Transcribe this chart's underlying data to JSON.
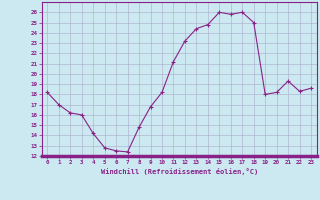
{
  "x": [
    0,
    1,
    2,
    3,
    4,
    5,
    6,
    7,
    8,
    9,
    10,
    11,
    12,
    13,
    14,
    15,
    16,
    17,
    18,
    19,
    20,
    21,
    22,
    23
  ],
  "y": [
    18.2,
    17.0,
    16.2,
    16.0,
    14.2,
    12.8,
    12.5,
    12.4,
    14.8,
    16.8,
    18.2,
    21.2,
    23.2,
    24.4,
    24.8,
    26.0,
    25.8,
    26.0,
    25.0,
    18.0,
    18.2,
    19.3,
    18.3,
    18.6
  ],
  "line_color": "#882288",
  "marker": "+",
  "bg_color": "#cce8f0",
  "grid_color": "#aaaacc",
  "xlabel": "Windchill (Refroidissement éolien,°C)",
  "xlim": [
    -0.5,
    23.5
  ],
  "ylim": [
    12,
    27
  ],
  "yticks": [
    12,
    13,
    14,
    15,
    16,
    17,
    18,
    19,
    20,
    21,
    22,
    23,
    24,
    25,
    26
  ],
  "xticks": [
    0,
    1,
    2,
    3,
    4,
    5,
    6,
    7,
    8,
    9,
    10,
    11,
    12,
    13,
    14,
    15,
    16,
    17,
    18,
    19,
    20,
    21,
    22,
    23
  ],
  "label_color": "#882288",
  "tick_color": "#882288",
  "axis_color": "#882288",
  "bottom_bar_color": "#882288"
}
